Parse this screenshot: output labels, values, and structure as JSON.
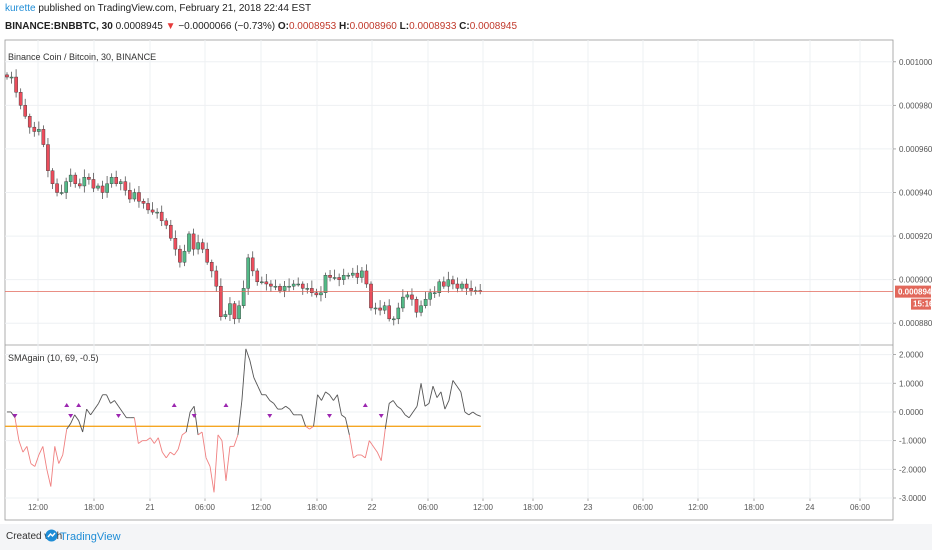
{
  "header": {
    "author": "kurette",
    "published_text": "published on TradingView.com, February 21, 2018 22:44 EST",
    "symbol_line": "BINANCE:BNBBTC, 30",
    "price": "0.0008945",
    "change_arrow": "▼",
    "change_text": "−0.0000066 (−0.73%)",
    "o_label": "O:",
    "o_value": "0.0008953",
    "h_label": "H:",
    "h_value": "0.0008960",
    "l_label": "L:",
    "l_value": "0.0008933",
    "c_label": "C:",
    "c_value": "0.0008945"
  },
  "footer": {
    "created_with": "Created with",
    "brand": "TradingView"
  },
  "colors": {
    "up": "#53b987",
    "down": "#eb4d5c",
    "last_price_line": "#e2685b",
    "indicator_pos": "#555555",
    "indicator_neg": "#f08080",
    "threshold_line": "#f5a623",
    "signal_marker": "#9c27b0",
    "grid": "#eef0f3",
    "axis_text": "#555555",
    "price_label_bg": "#e2685b"
  },
  "chart_data": [
    {
      "type": "candlestick",
      "title": "Binance Coin / Bitcoin, 30, BINANCE",
      "y_ticks": [
        "0.0010000",
        "0.0009800",
        "0.0009600",
        "0.0009400",
        "0.0009200",
        "0.0009000",
        "0.0008800"
      ],
      "ylim": [
        0.00087,
        0.00101
      ],
      "last_price": "0.0008945",
      "countdown": "15:16",
      "grid": true,
      "series_close": [
        0.000993,
        0.000993,
        0.000986,
        0.00098,
        0.000975,
        0.00097,
        0.000968,
        0.000969,
        0.000962,
        0.00095,
        0.000944,
        0.00094,
        0.00094,
        0.000945,
        0.000948,
        0.000944,
        0.000943,
        0.000947,
        0.000946,
        0.000942,
        0.000943,
        0.00094,
        0.000944,
        0.000947,
        0.000944,
        0.000945,
        0.000941,
        0.000937,
        0.00094,
        0.000936,
        0.000935,
        0.000932,
        0.000931,
        0.000931,
        0.000927,
        0.000925,
        0.000919,
        0.000914,
        0.000908,
        0.000913,
        0.000921,
        0.000914,
        0.000917,
        0.000914,
        0.000908,
        0.000904,
        0.000897,
        0.000883,
        0.000884,
        0.000889,
        0.000882,
        0.000888,
        0.000896,
        0.00091,
        0.000904,
        0.000899,
        0.000899,
        0.000898,
        0.000897,
        0.000897,
        0.000895,
        0.000897,
        0.000897,
        0.000898,
        0.000898,
        0.000896,
        0.000896,
        0.000894,
        0.000893,
        0.000894,
        0.000902,
        0.000901,
        0.000901,
        0.0009,
        0.000902,
        0.000902,
        0.000903,
        0.000901,
        0.000904,
        0.000898,
        0.000887,
        0.000887,
        0.000886,
        0.000888,
        0.000882,
        0.000882,
        0.000887,
        0.000892,
        0.000893,
        0.000891,
        0.000885,
        0.000888,
        0.000891,
        0.000894,
        0.000894,
        0.000899,
        0.000897,
        0.0009,
        0.000898,
        0.000896,
        0.000898,
        0.000896,
        0.000895,
        0.000895,
        0.0008945
      ]
    },
    {
      "type": "line",
      "title": "SMAgain (10, 69, -0.5)",
      "y_ticks": [
        "2.0000",
        "1.0000",
        "0.0000",
        "-1.0000",
        "-2.0000",
        "-3.0000"
      ],
      "ylim": [
        -3,
        2.3
      ],
      "threshold": -0.5,
      "x_tick_labels": [
        "12:00",
        "18:00",
        "21",
        "06:00",
        "12:00",
        "18:00",
        "22",
        "06:00",
        "12:00",
        "18:00",
        "23",
        "06:00",
        "12:00",
        "18:00",
        "24",
        "06:00"
      ],
      "values": [
        0,
        0,
        -0.2,
        -1.0,
        -1.4,
        -1.2,
        -1.8,
        -1.9,
        -1.5,
        -1.2,
        -2.0,
        -2.6,
        -1.2,
        -1.8,
        -1.5,
        -0.6,
        -0.4,
        -0.1,
        -0.3,
        -0.7,
        0.1,
        -0.1,
        0.1,
        0.3,
        0.6,
        0.6,
        0.3,
        0.4,
        0.2,
        0.0,
        -0.2,
        -0.2,
        -0.2,
        -1.1,
        -1.0,
        -1.0,
        -0.9,
        -1.1,
        -0.9,
        -1.4,
        -1.6,
        -1.4,
        -1.5,
        -1.3,
        -0.8,
        -0.7,
        0.0,
        0.2,
        -0.8,
        -0.7,
        -1.6,
        -1.9,
        -2.8,
        -0.8,
        -1.0,
        -2.4,
        -1.2,
        -1.2,
        -0.8,
        0.4,
        2.2,
        1.8,
        1.2,
        0.9,
        0.6,
        0.6,
        0.4,
        0.3,
        0.1,
        0.1,
        0.2,
        0.1,
        -0.1,
        -0.1,
        -0.1,
        -0.5,
        -0.6,
        -0.5,
        0.6,
        0.4,
        0.7,
        0.6,
        0.4,
        0.6,
        -0.1,
        -0.2,
        -0.8,
        -1.6,
        -1.5,
        -1.5,
        -1.6,
        -1.0,
        -1.2,
        -1.4,
        -1.7,
        -0.6,
        0.3,
        0.4,
        0.2,
        0.1,
        -0.1,
        -0.2,
        0.0,
        0.2,
        1.0,
        0.2,
        0.3,
        0.9,
        0.5,
        0.7,
        0.1,
        0.4,
        1.1,
        0.9,
        0.7,
        0.0,
        -0.1,
        0.0,
        -0.1,
        -0.15
      ],
      "markers_down_idx": [
        2,
        16,
        28,
        47,
        66,
        81,
        94
      ],
      "markers_up_idx": [
        15,
        18,
        42,
        55,
        90
      ]
    }
  ]
}
